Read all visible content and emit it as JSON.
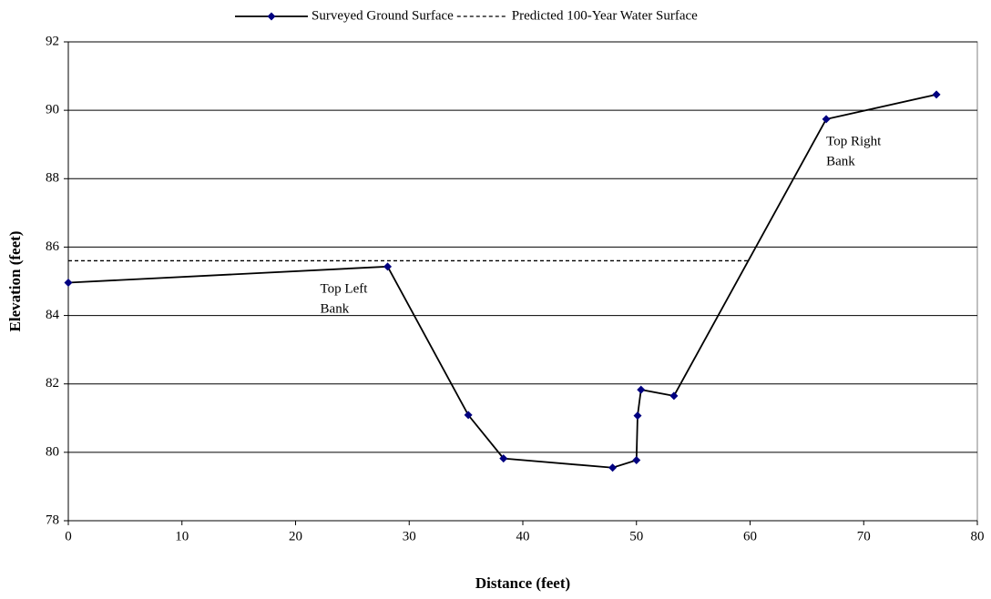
{
  "chart_data": {
    "type": "line",
    "x_label": "Distance (feet)",
    "y_label": "Elevation (feet)",
    "xlim": [
      0,
      80
    ],
    "xticks": [
      0,
      10,
      20,
      30,
      40,
      50,
      60,
      70,
      80
    ],
    "ylim": [
      78,
      92
    ],
    "yticks": [
      78,
      80,
      82,
      84,
      86,
      88,
      90,
      92
    ],
    "grid": true,
    "legend": "top",
    "series": [
      {
        "name": "Surveyed Ground Surface",
        "color": "#000000",
        "marker_color": "#000080",
        "marker": "diamond",
        "dash": false,
        "x": [
          0,
          28.1,
          35.2,
          38.3,
          47.9,
          50.0,
          50.1,
          50.4,
          53.3,
          66.7,
          76.4
        ],
        "values": [
          84.96,
          85.43,
          81.09,
          79.82,
          79.55,
          79.77,
          81.07,
          81.83,
          81.65,
          89.74,
          90.46
        ]
      },
      {
        "name": "Predicted 100-Year Water Surface",
        "color": "#000000",
        "marker": "none",
        "dash": true,
        "x": [
          0,
          60
        ],
        "values": [
          85.6,
          85.6
        ]
      }
    ],
    "annotations": [
      {
        "lines": [
          "Top Left",
          "Bank"
        ],
        "x": 28.1,
        "y": 85.43
      },
      {
        "lines": [
          "Top Right",
          "Bank"
        ],
        "x": 66.7,
        "y": 89.74
      }
    ]
  }
}
